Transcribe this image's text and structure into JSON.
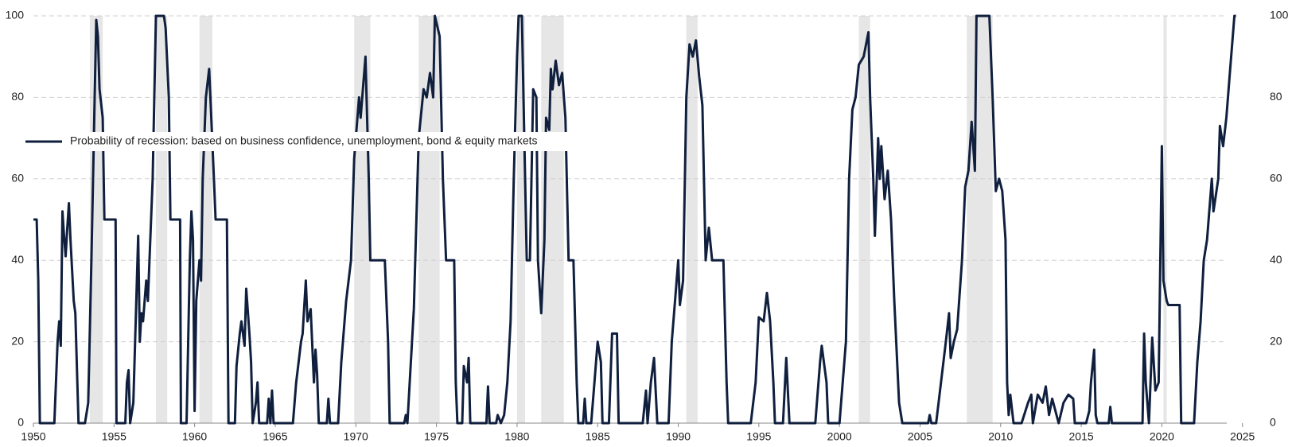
{
  "chart_data": {
    "type": "line",
    "series": [
      {
        "name": "Probability of recession: based on business confidence, unemployment, bond & equity markets",
        "color": "#0f1f3d",
        "x": [
          1950.0,
          1950.2,
          1950.3,
          1950.4,
          1951.3,
          1951.5,
          1951.6,
          1951.7,
          1951.8,
          1951.9,
          1952.0,
          1952.1,
          1952.2,
          1952.3,
          1952.5,
          1952.6,
          1952.8,
          1953.2,
          1953.4,
          1953.6,
          1953.8,
          1953.9,
          1954.0,
          1954.1,
          1954.3,
          1954.4,
          1955.1,
          1955.15,
          1955.7,
          1955.8,
          1955.9,
          1956.0,
          1956.2,
          1956.5,
          1956.6,
          1956.7,
          1956.8,
          1957.0,
          1957.1,
          1957.4,
          1957.6,
          1958.1,
          1958.2,
          1958.4,
          1958.5,
          1959.1,
          1959.15,
          1959.5,
          1959.7,
          1959.8,
          1959.9,
          1960.0,
          1960.1,
          1960.3,
          1960.4,
          1960.5,
          1960.7,
          1960.9,
          1961.0,
          1961.2,
          1961.3,
          1962.0,
          1962.1,
          1962.5,
          1962.6,
          1962.8,
          1962.9,
          1963.1,
          1963.2,
          1963.4,
          1963.5,
          1963.6,
          1963.8,
          1963.9,
          1964.0,
          1964.5,
          1964.6,
          1964.7,
          1964.8,
          1964.9,
          1966.1,
          1966.3,
          1966.6,
          1966.7,
          1966.9,
          1967.0,
          1967.2,
          1967.4,
          1967.5,
          1967.6,
          1967.7,
          1968.2,
          1968.3,
          1968.4,
          1968.9,
          1969.1,
          1969.4,
          1969.7,
          1969.9,
          1970.2,
          1970.3,
          1970.6,
          1970.8,
          1970.9,
          1971.8,
          1972.0,
          1972.1,
          1973.0,
          1973.1,
          1973.2,
          1973.6,
          1973.9,
          1974.2,
          1974.4,
          1974.6,
          1974.8,
          1974.9,
          1975.2,
          1975.4,
          1975.6,
          1976.1,
          1976.2,
          1976.3,
          1976.6,
          1976.7,
          1976.9,
          1977.0,
          1977.1,
          1978.1,
          1978.2,
          1978.3,
          1978.7,
          1978.8,
          1979.0,
          1979.2,
          1979.4,
          1979.6,
          1979.8,
          1980.0,
          1980.1,
          1980.3,
          1980.4,
          1980.6,
          1980.8,
          1981.0,
          1981.2,
          1981.3,
          1981.5,
          1981.7,
          1981.8,
          1982.0,
          1982.1,
          1982.2,
          1982.4,
          1982.6,
          1982.8,
          1983.0,
          1983.2,
          1983.5,
          1983.7,
          1983.8,
          1984.1,
          1984.2,
          1984.3,
          1984.6,
          1984.8,
          1985.0,
          1985.2,
          1985.3,
          1985.7,
          1985.9,
          1986.2,
          1986.3,
          1987.8,
          1988.0,
          1988.1,
          1988.3,
          1988.5,
          1988.7,
          1989.4,
          1989.6,
          1989.8,
          1990.0,
          1990.1,
          1990.3,
          1990.5,
          1990.7,
          1990.9,
          1991.1,
          1991.3,
          1991.5,
          1991.7,
          1991.9,
          1992.1,
          1992.8,
          1993.0,
          1993.1,
          1994.5,
          1994.8,
          1995.0,
          1995.3,
          1995.5,
          1995.7,
          1995.9,
          1996.0,
          1996.5,
          1996.7,
          1996.9,
          1998.5,
          1998.8,
          1998.9,
          1999.2,
          1999.3,
          2000.0,
          2000.4,
          2000.6,
          2000.8,
          2001.0,
          2001.2,
          2001.5,
          2001.8,
          2001.9,
          2002.1,
          2002.2,
          2002.4,
          2002.5,
          2002.6,
          2002.8,
          2003.0,
          2003.2,
          2003.4,
          2003.7,
          2003.9,
          2005.5,
          2005.6,
          2005.7,
          2006.0,
          2006.3,
          2006.6,
          2006.8,
          2006.9,
          2007.1,
          2007.3,
          2007.6,
          2007.8,
          2008.0,
          2008.2,
          2008.4,
          2008.5,
          2009.3,
          2009.5,
          2009.7,
          2009.9,
          2010.1,
          2010.3,
          2010.4,
          2010.5,
          2010.6,
          2010.8,
          2011.3,
          2011.7,
          2011.9,
          2012.0,
          2012.3,
          2012.6,
          2012.8,
          2013.0,
          2013.2,
          2013.6,
          2013.9,
          2014.2,
          2014.5,
          2014.6,
          2015.3,
          2015.5,
          2015.6,
          2015.8,
          2015.9,
          2016.0,
          2016.7,
          2016.8,
          2016.9,
          2018.8,
          2018.9,
          2019.0,
          2019.2,
          2019.4,
          2019.6,
          2019.8,
          2020.0,
          2020.1,
          2020.3,
          2020.4,
          2021.1,
          2021.2,
          2022.0,
          2022.2,
          2022.4,
          2022.6,
          2022.8,
          2023.0,
          2023.1,
          2023.2,
          2023.5,
          2023.6,
          2023.8,
          2024.0,
          2024.2,
          2024.5,
          2024.6
        ],
        "values": [
          50,
          50,
          35,
          0,
          0,
          20,
          25,
          19,
          52,
          46,
          41,
          48,
          54,
          45,
          30,
          27,
          0,
          0,
          5,
          40,
          80,
          99,
          95,
          82,
          75,
          50,
          50,
          0,
          0,
          10,
          13,
          0,
          5,
          46,
          20,
          27,
          25,
          35,
          30,
          60,
          100,
          100,
          97,
          80,
          50,
          50,
          0,
          0,
          40,
          52,
          45,
          3,
          30,
          40,
          35,
          60,
          80,
          87,
          78,
          60,
          50,
          50,
          0,
          0,
          14,
          22,
          25,
          19,
          33,
          22,
          15,
          0,
          5,
          10,
          0,
          0,
          6,
          0,
          8,
          0,
          0,
          10,
          20,
          22,
          35,
          25,
          28,
          10,
          18,
          12,
          0,
          0,
          6,
          0,
          0,
          15,
          30,
          40,
          65,
          80,
          75,
          90,
          60,
          40,
          40,
          20,
          0,
          0,
          2,
          0,
          28,
          70,
          82,
          80,
          86,
          80,
          100,
          95,
          60,
          40,
          40,
          10,
          0,
          0,
          14,
          10,
          16,
          0,
          0,
          9,
          0,
          0,
          2,
          0,
          2,
          10,
          25,
          60,
          90,
          100,
          100,
          80,
          40,
          40,
          82,
          80,
          40,
          27,
          45,
          75,
          72,
          87,
          82,
          89,
          83,
          86,
          75,
          40,
          40,
          10,
          0,
          0,
          6,
          0,
          0,
          10,
          20,
          15,
          0,
          0,
          22,
          22,
          0,
          0,
          8,
          0,
          10,
          16,
          0,
          0,
          20,
          30,
          40,
          29,
          35,
          80,
          93,
          90,
          94,
          85,
          78,
          40,
          48,
          40,
          40,
          10,
          0,
          0,
          10,
          26,
          25,
          32,
          25,
          10,
          0,
          0,
          16,
          0,
          0,
          15,
          19,
          10,
          0,
          0,
          20,
          60,
          77,
          80,
          88,
          90,
          96,
          80,
          60,
          46,
          70,
          60,
          68,
          55,
          62,
          50,
          30,
          5,
          0,
          0,
          2,
          0,
          0,
          10,
          20,
          27,
          16,
          20,
          23,
          40,
          58,
          62,
          74,
          62,
          100,
          100,
          80,
          57,
          60,
          57,
          45,
          10,
          2,
          7,
          0,
          0,
          5,
          7,
          0,
          7,
          5,
          9,
          2,
          6,
          0,
          5,
          7,
          6,
          0,
          0,
          3,
          10,
          18,
          2,
          0,
          0,
          4,
          0,
          0,
          22,
          10,
          0,
          21,
          8,
          10,
          68,
          35,
          30,
          29,
          29,
          0,
          0,
          15,
          25,
          40,
          45,
          55,
          60,
          52,
          60,
          73,
          68,
          75,
          85,
          100,
          100
        ]
      }
    ],
    "recessions": [
      [
        1953.5,
        1954.3
      ],
      [
        1957.6,
        1958.3
      ],
      [
        1960.3,
        1961.1
      ],
      [
        1969.9,
        1970.9
      ],
      [
        1973.9,
        1975.2
      ],
      [
        1980.0,
        1980.5
      ],
      [
        1981.5,
        1982.9
      ],
      [
        1990.5,
        1991.2
      ],
      [
        2001.2,
        2001.9
      ],
      [
        2007.9,
        2009.5
      ],
      [
        2020.1,
        2020.3
      ]
    ],
    "xlim": [
      1950,
      2026
    ],
    "xticks": [
      1950,
      1955,
      1960,
      1965,
      1970,
      1975,
      1980,
      1985,
      1990,
      1995,
      2000,
      2005,
      2010,
      2015,
      2020,
      2025
    ],
    "ylim": [
      0,
      100
    ],
    "yticks": [
      0,
      20,
      40,
      60,
      80,
      100
    ],
    "y2lim": [
      0,
      100
    ],
    "y2ticks": [
      0,
      20,
      40,
      60,
      80,
      100
    ],
    "grid": true,
    "legend": "upper left"
  }
}
